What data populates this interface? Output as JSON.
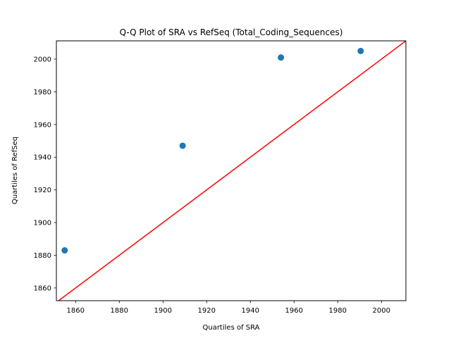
{
  "chart_data": {
    "type": "scatter",
    "title": "Q-Q Plot of SRA vs RefSeq (Total_Coding_Sequences)",
    "xlabel": "Quartiles of SRA",
    "ylabel": "Quartiles of RefSeq",
    "xlim": [
      1851.2,
      2011.2
    ],
    "ylim": [
      1852.2,
      2011.2
    ],
    "xticks": [
      1860,
      1880,
      1900,
      1920,
      1940,
      1960,
      1980,
      2000
    ],
    "yticks": [
      1860,
      1880,
      1900,
      1920,
      1940,
      1960,
      1980,
      2000
    ],
    "grid": false,
    "series": [
      {
        "x": [
          1855,
          1909,
          1954,
          1990.5
        ],
        "y": [
          1883,
          1947,
          2001,
          2005
        ],
        "color": "#1f77b4"
      }
    ],
    "reference_line": {
      "x": [
        1851.2,
        2011.2
      ],
      "y": [
        1851.2,
        2011.2
      ],
      "color": "#ff0000"
    }
  }
}
